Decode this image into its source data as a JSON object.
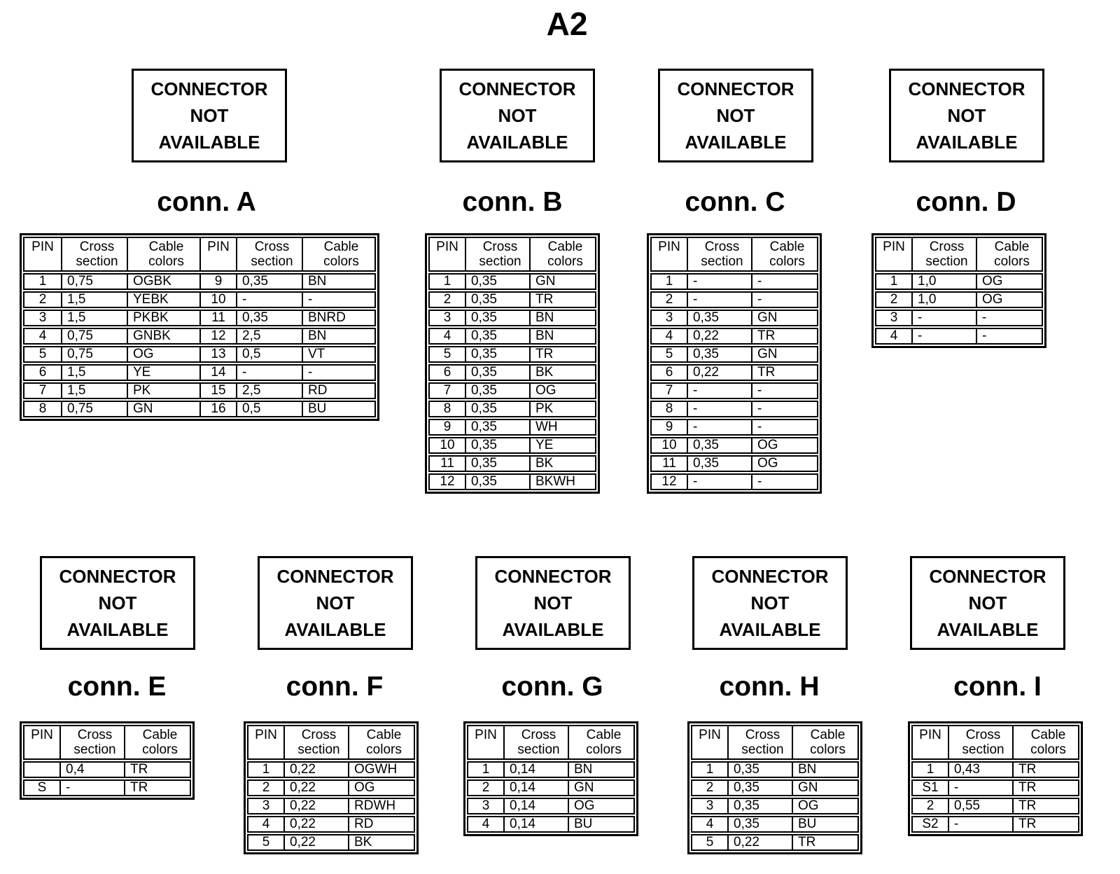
{
  "page_title": "A2",
  "connector_box": {
    "lines": [
      "CONNECTOR",
      "NOT",
      "AVAILABLE"
    ]
  },
  "table_header": {
    "pin": "PIN",
    "cross": [
      "Cross",
      "section"
    ],
    "cable": [
      "Cable",
      "colors"
    ]
  },
  "connectors": [
    {
      "id": "A",
      "label": "conn. A",
      "groups": [
        [
          {
            "pin": "1",
            "cross": "0,75",
            "cable": "OGBK"
          },
          {
            "pin": "2",
            "cross": "1,5",
            "cable": "YEBK"
          },
          {
            "pin": "3",
            "cross": "1,5",
            "cable": "PKBK"
          },
          {
            "pin": "4",
            "cross": "0,75",
            "cable": "GNBK"
          },
          {
            "pin": "5",
            "cross": "0,75",
            "cable": "OG"
          },
          {
            "pin": "6",
            "cross": "1,5",
            "cable": "YE"
          },
          {
            "pin": "7",
            "cross": "1,5",
            "cable": "PK"
          },
          {
            "pin": "8",
            "cross": "0,75",
            "cable": "GN"
          }
        ],
        [
          {
            "pin": "9",
            "cross": "0,35",
            "cable": "BN"
          },
          {
            "pin": "10",
            "cross": "-",
            "cable": "-"
          },
          {
            "pin": "11",
            "cross": "0,35",
            "cable": "BNRD"
          },
          {
            "pin": "12",
            "cross": "2,5",
            "cable": "BN"
          },
          {
            "pin": "13",
            "cross": "0,5",
            "cable": "VT"
          },
          {
            "pin": "14",
            "cross": "-",
            "cable": "-"
          },
          {
            "pin": "15",
            "cross": "2,5",
            "cable": "RD"
          },
          {
            "pin": "16",
            "cross": "0,5",
            "cable": "BU"
          }
        ]
      ]
    },
    {
      "id": "B",
      "label": "conn. B",
      "groups": [
        [
          {
            "pin": "1",
            "cross": "0,35",
            "cable": "GN"
          },
          {
            "pin": "2",
            "cross": "0,35",
            "cable": "TR"
          },
          {
            "pin": "3",
            "cross": "0,35",
            "cable": "BN"
          },
          {
            "pin": "4",
            "cross": "0,35",
            "cable": "BN"
          },
          {
            "pin": "5",
            "cross": "0,35",
            "cable": "TR"
          },
          {
            "pin": "6",
            "cross": "0,35",
            "cable": "BK"
          },
          {
            "pin": "7",
            "cross": "0,35",
            "cable": "OG"
          },
          {
            "pin": "8",
            "cross": "0,35",
            "cable": "PK"
          },
          {
            "pin": "9",
            "cross": "0,35",
            "cable": "WH"
          },
          {
            "pin": "10",
            "cross": "0,35",
            "cable": "YE"
          },
          {
            "pin": "11",
            "cross": "0,35",
            "cable": "BK"
          },
          {
            "pin": "12",
            "cross": "0,35",
            "cable": "BKWH"
          }
        ]
      ]
    },
    {
      "id": "C",
      "label": "conn. C",
      "groups": [
        [
          {
            "pin": "1",
            "cross": "-",
            "cable": "-"
          },
          {
            "pin": "2",
            "cross": "-",
            "cable": "-"
          },
          {
            "pin": "3",
            "cross": "0,35",
            "cable": "GN"
          },
          {
            "pin": "4",
            "cross": "0,22",
            "cable": "TR"
          },
          {
            "pin": "5",
            "cross": "0,35",
            "cable": "GN"
          },
          {
            "pin": "6",
            "cross": "0,22",
            "cable": "TR"
          },
          {
            "pin": "7",
            "cross": "-",
            "cable": "-"
          },
          {
            "pin": "8",
            "cross": "-",
            "cable": "-"
          },
          {
            "pin": "9",
            "cross": "-",
            "cable": "-"
          },
          {
            "pin": "10",
            "cross": "0,35",
            "cable": "OG"
          },
          {
            "pin": "11",
            "cross": "0,35",
            "cable": "OG"
          },
          {
            "pin": "12",
            "cross": "-",
            "cable": "-"
          }
        ]
      ]
    },
    {
      "id": "D",
      "label": "conn. D",
      "groups": [
        [
          {
            "pin": "1",
            "cross": "1,0",
            "cable": "OG"
          },
          {
            "pin": "2",
            "cross": "1,0",
            "cable": "OG"
          },
          {
            "pin": "3",
            "cross": "-",
            "cable": "-"
          },
          {
            "pin": "4",
            "cross": "-",
            "cable": "-"
          }
        ]
      ]
    },
    {
      "id": "E",
      "label": "conn. E",
      "groups": [
        [
          {
            "pin": "",
            "cross": "0,4",
            "cable": "TR"
          },
          {
            "pin": "S",
            "cross": "-",
            "cable": "TR"
          }
        ]
      ]
    },
    {
      "id": "F",
      "label": "conn. F",
      "groups": [
        [
          {
            "pin": "1",
            "cross": "0,22",
            "cable": "OGWH"
          },
          {
            "pin": "2",
            "cross": "0,22",
            "cable": "OG"
          },
          {
            "pin": "3",
            "cross": "0,22",
            "cable": "RDWH"
          },
          {
            "pin": "4",
            "cross": "0,22",
            "cable": "RD"
          },
          {
            "pin": "5",
            "cross": "0,22",
            "cable": "BK"
          }
        ]
      ]
    },
    {
      "id": "G",
      "label": "conn. G",
      "groups": [
        [
          {
            "pin": "1",
            "cross": "0,14",
            "cable": "BN"
          },
          {
            "pin": "2",
            "cross": "0,14",
            "cable": "GN"
          },
          {
            "pin": "3",
            "cross": "0,14",
            "cable": "OG"
          },
          {
            "pin": "4",
            "cross": "0,14",
            "cable": "BU"
          }
        ]
      ]
    },
    {
      "id": "H",
      "label": "conn. H",
      "groups": [
        [
          {
            "pin": "1",
            "cross": "0,35",
            "cable": "BN"
          },
          {
            "pin": "2",
            "cross": "0,35",
            "cable": "GN"
          },
          {
            "pin": "3",
            "cross": "0,35",
            "cable": "OG"
          },
          {
            "pin": "4",
            "cross": "0,35",
            "cable": "BU"
          },
          {
            "pin": "5",
            "cross": "0,22",
            "cable": "TR"
          }
        ]
      ]
    },
    {
      "id": "I",
      "label": "conn. I",
      "groups": [
        [
          {
            "pin": "1",
            "cross": "0,43",
            "cable": "TR"
          },
          {
            "pin": "S1",
            "cross": "-",
            "cable": "TR"
          },
          {
            "pin": "2",
            "cross": "0,55",
            "cable": "TR"
          },
          {
            "pin": "S2",
            "cross": "-",
            "cable": "TR"
          }
        ]
      ]
    }
  ]
}
